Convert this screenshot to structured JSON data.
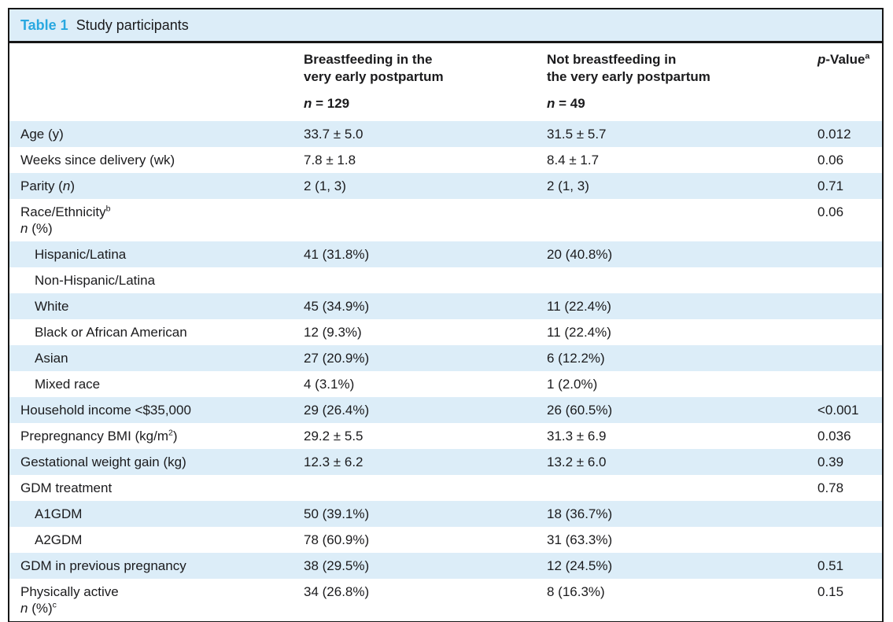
{
  "title": {
    "label": "Table 1",
    "caption": "Study participants"
  },
  "colors": {
    "accent_blue": "#29a8e0",
    "row_stripe": "#dcedf8",
    "border": "#161616"
  },
  "header": {
    "col1": "",
    "col2": {
      "line1": "Breastfeeding in the",
      "line2": "very early postpartum",
      "n": "*n* = 129"
    },
    "col3": {
      "line1": "Not breastfeeding in",
      "line2": "the very early postpartum",
      "n": "*n* = 49"
    },
    "col4": {
      "label": "*p*-Value^a^"
    }
  },
  "rows": [
    {
      "label": "Age (y)",
      "indent": false,
      "group1": "33.7 ± 5.0",
      "group2": "31.5 ± 5.7",
      "p": "0.012"
    },
    {
      "label": "Weeks since delivery (wk)",
      "indent": false,
      "group1": "7.8 ± 1.8",
      "group2": "8.4 ± 1.7",
      "p": "0.06"
    },
    {
      "label": "Parity (*n*)",
      "indent": false,
      "group1": "2 (1, 3)",
      "group2": "2 (1, 3)",
      "p": "0.71"
    },
    {
      "label": "Race/Ethnicity^b^",
      "label2": "*n* (%)",
      "indent": false,
      "group1": "",
      "group2": "",
      "p": "0.06"
    },
    {
      "label": "Hispanic/Latina",
      "indent": true,
      "group1": "41 (31.8%)",
      "group2": "20 (40.8%)",
      "p": ""
    },
    {
      "label": "Non-Hispanic/Latina",
      "indent": true,
      "group1": "",
      "group2": "",
      "p": ""
    },
    {
      "label": "White",
      "indent": true,
      "group1": "45 (34.9%)",
      "group2": "11 (22.4%)",
      "p": ""
    },
    {
      "label": "Black or African American",
      "indent": true,
      "group1": "12 (9.3%)",
      "group2": "11 (22.4%)",
      "p": ""
    },
    {
      "label": "Asian",
      "indent": true,
      "group1": "27 (20.9%)",
      "group2": "6 (12.2%)",
      "p": ""
    },
    {
      "label": "Mixed race",
      "indent": true,
      "group1": "4 (3.1%)",
      "group2": "1 (2.0%)",
      "p": ""
    },
    {
      "label": "Household income <$35,000",
      "indent": false,
      "group1": "29 (26.4%)",
      "group2": "26 (60.5%)",
      "p": "<0.001"
    },
    {
      "label": "Prepregnancy BMI (kg/m^2^)",
      "indent": false,
      "group1": "29.2 ± 5.5",
      "group2": "31.3 ± 6.9",
      "p": "0.036"
    },
    {
      "label": "Gestational weight gain (kg)",
      "indent": false,
      "group1": "12.3 ± 6.2",
      "group2": "13.2 ± 6.0",
      "p": "0.39"
    },
    {
      "label": "GDM treatment",
      "indent": false,
      "group1": "",
      "group2": "",
      "p": "0.78"
    },
    {
      "label": "A1GDM",
      "indent": true,
      "group1": "50 (39.1%)",
      "group2": "18 (36.7%)",
      "p": ""
    },
    {
      "label": "A2GDM",
      "indent": true,
      "group1": "78 (60.9%)",
      "group2": "31 (63.3%)",
      "p": ""
    },
    {
      "label": "GDM in previous pregnancy",
      "indent": false,
      "group1": "38 (29.5%)",
      "group2": "12 (24.5%)",
      "p": "0.51"
    },
    {
      "label": "Physically active",
      "label2": "*n* (%)^c^",
      "indent": false,
      "group1": "34 (26.8%)",
      "group2": "8 (16.3%)",
      "p": "0.15"
    }
  ]
}
